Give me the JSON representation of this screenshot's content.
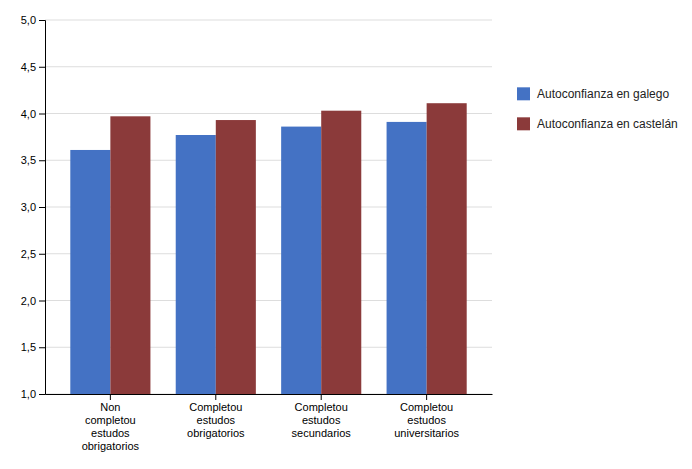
{
  "chart_data": {
    "type": "bar",
    "categories": [
      "Non\ncompletou\nestudos\nobrigatorios",
      "Completou\nestudos\nobrigatorios",
      "Completou\nestudos\nsecundarios",
      "Completou\nestudos\nuniversitarios"
    ],
    "series": [
      {
        "name": "Autoconfianza en galego",
        "color": "#4472C4",
        "values": [
          3.61,
          3.77,
          3.86,
          3.91
        ]
      },
      {
        "name": "Autoconfianza en castelán",
        "color": "#8B3A3A",
        "values": [
          3.97,
          3.93,
          4.03,
          4.11
        ]
      }
    ],
    "ylim": [
      1.0,
      5.0
    ],
    "yticks": [
      {
        "value": 1.0,
        "label": "1,0"
      },
      {
        "value": 1.5,
        "label": "1,5"
      },
      {
        "value": 2.0,
        "label": "2,0"
      },
      {
        "value": 2.5,
        "label": "2,5"
      },
      {
        "value": 3.0,
        "label": "3,0"
      },
      {
        "value": 3.5,
        "label": "3,5"
      },
      {
        "value": 4.0,
        "label": "4,0"
      },
      {
        "value": 4.5,
        "label": "4,5"
      },
      {
        "value": 5.0,
        "label": "5,0"
      }
    ],
    "grid": true,
    "legend": "right"
  }
}
